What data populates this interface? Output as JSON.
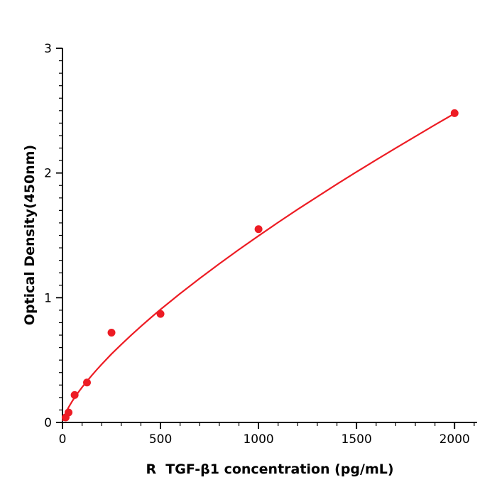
{
  "figure": {
    "background": "#ffffff",
    "accent_red": "#ed1c24",
    "axis_color": "#000000"
  },
  "chart_data": {
    "type": "scatter",
    "title": "",
    "xlabel": "R  TGF-β1 concentration (pg/mL)",
    "ylabel": "Optical Density(450nm)",
    "xlim": [
      0,
      2115
    ],
    "ylim": [
      0,
      3
    ],
    "x_ticks": [
      0,
      500,
      1000,
      1500,
      2000
    ],
    "y_ticks": [
      0,
      1,
      2,
      3
    ],
    "x_minor_step": 100,
    "y_minor_step": 0.1,
    "grid": false,
    "legend": "none",
    "series": [
      {
        "name": "standard-points",
        "type": "scatter",
        "color": "#ed1c24",
        "marker": "circle",
        "points": [
          [
            16,
            0.04
          ],
          [
            31,
            0.08
          ],
          [
            62,
            0.22
          ],
          [
            125,
            0.32
          ],
          [
            250,
            0.72
          ],
          [
            500,
            0.87
          ],
          [
            1000,
            1.55
          ],
          [
            2000,
            2.48
          ]
        ]
      },
      {
        "name": "fit-curve",
        "type": "line",
        "color": "#ed1c24",
        "points": [
          [
            2,
            0.017
          ],
          [
            5,
            0.032
          ],
          [
            10,
            0.053
          ],
          [
            20,
            0.088
          ],
          [
            30,
            0.118
          ],
          [
            40,
            0.145
          ],
          [
            50,
            0.171
          ],
          [
            60,
            0.195
          ],
          [
            80,
            0.24
          ],
          [
            100,
            0.282
          ],
          [
            125,
            0.331
          ],
          [
            150,
            0.378
          ],
          [
            175,
            0.423
          ],
          [
            200,
            0.466
          ],
          [
            250,
            0.549
          ],
          [
            300,
            0.625
          ],
          [
            350,
            0.699
          ],
          [
            400,
            0.77
          ],
          [
            450,
            0.839
          ],
          [
            500,
            0.906
          ],
          [
            600,
            1.033
          ],
          [
            700,
            1.155
          ],
          [
            800,
            1.272
          ],
          [
            900,
            1.386
          ],
          [
            1000,
            1.496
          ],
          [
            1100,
            1.604
          ],
          [
            1200,
            1.709
          ],
          [
            1300,
            1.81
          ],
          [
            1400,
            1.911
          ],
          [
            1500,
            2.009
          ],
          [
            1600,
            2.105
          ],
          [
            1700,
            2.2
          ],
          [
            1800,
            2.293
          ],
          [
            1900,
            2.386
          ],
          [
            2000,
            2.477
          ]
        ]
      }
    ]
  }
}
